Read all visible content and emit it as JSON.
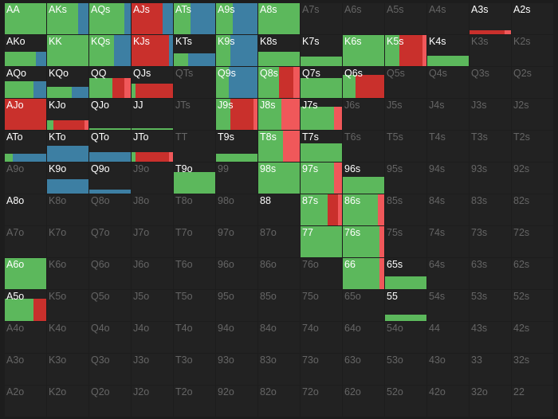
{
  "colors": {
    "call": "#5cb85c",
    "raise": "#c9302c",
    "raise_light": "#f0585a",
    "allin": "#3d7fa3"
  },
  "legend_order": [
    "call",
    "raise",
    "raise_light",
    "allin"
  ],
  "rows": [
    [
      {
        "label": "AA",
        "freq": {
          "call": 1.0
        }
      },
      {
        "label": "AKs",
        "freq": {
          "call": 0.75,
          "allin": 0.25
        }
      },
      {
        "label": "AQs",
        "freq": {
          "call": 0.85,
          "allin": 0.15
        }
      },
      {
        "label": "AJs",
        "freq": {
          "raise": 0.75,
          "allin": 0.25
        }
      },
      {
        "label": "ATs",
        "freq": {
          "call": 0.4,
          "allin": 0.6
        }
      },
      {
        "label": "A9s",
        "freq": {
          "call": 0.4,
          "allin": 0.6
        }
      },
      {
        "label": "A8s",
        "freq": {
          "call": 1.0
        }
      },
      {
        "label": "A7s",
        "freq": {}
      },
      {
        "label": "A6s",
        "freq": {}
      },
      {
        "label": "A5s",
        "freq": {}
      },
      {
        "label": "A4s",
        "freq": {}
      },
      {
        "label": "A3s",
        "freq": {
          "raise": 0.85,
          "raise_light": 0.15
        },
        "height": 0.12
      },
      {
        "label": "A2s",
        "freq": {},
        "active": true
      }
    ],
    [
      {
        "label": "AKo",
        "freq": {
          "call": 0.75,
          "allin": 0.25
        },
        "height": 0.45
      },
      {
        "label": "KK",
        "freq": {
          "call": 1.0
        }
      },
      {
        "label": "KQs",
        "freq": {
          "call": 0.6,
          "allin": 0.4
        }
      },
      {
        "label": "KJs",
        "freq": {
          "raise": 0.9,
          "allin": 0.1
        }
      },
      {
        "label": "KTs",
        "freq": {
          "call": 0.35,
          "allin": 0.65
        },
        "height": 0.42
      },
      {
        "label": "K9s",
        "freq": {
          "call": 0.35,
          "allin": 0.65
        }
      },
      {
        "label": "K8s",
        "freq": {
          "call": 1.0
        },
        "height": 0.45
      },
      {
        "label": "K7s",
        "freq": {
          "call": 1.0
        },
        "height": 0.3
      },
      {
        "label": "K6s",
        "freq": {
          "call": 1.0
        }
      },
      {
        "label": "K5s",
        "freq": {
          "raise": 0.55,
          "raise_light": 0.1,
          "call": 0.35
        }
      },
      {
        "label": "K4s",
        "freq": {
          "call": 1.0
        },
        "height": 0.33
      },
      {
        "label": "K3s",
        "freq": {}
      },
      {
        "label": "K2s",
        "freq": {}
      }
    ],
    [
      {
        "label": "AQo",
        "freq": {
          "call": 0.7,
          "allin": 0.3
        },
        "height": 0.55
      },
      {
        "label": "KQo",
        "freq": {
          "call": 0.6,
          "allin": 0.4
        },
        "height": 0.35
      },
      {
        "label": "QQ",
        "freq": {
          "call": 0.55,
          "raise": 0.3,
          "raise_light": 0.15
        },
        "height": 0.65
      },
      {
        "label": "QJs",
        "freq": {
          "raise": 0.9,
          "call": 0.1
        },
        "height": 0.45
      },
      {
        "label": "QTs",
        "freq": {}
      },
      {
        "label": "Q9s",
        "freq": {
          "call": 0.3,
          "allin": 0.7
        }
      },
      {
        "label": "Q8s",
        "freq": {
          "raise": 0.35,
          "raise_light": 0.15,
          "call": 0.5
        }
      },
      {
        "label": "Q7s",
        "freq": {
          "call": 1.0
        },
        "height": 0.65
      },
      {
        "label": "Q6s",
        "freq": {
          "raise": 0.7,
          "call": 0.3
        },
        "height": 0.75
      },
      {
        "label": "Q5s",
        "freq": {}
      },
      {
        "label": "Q4s",
        "freq": {}
      },
      {
        "label": "Q3s",
        "freq": {}
      },
      {
        "label": "Q2s",
        "freq": {}
      }
    ],
    [
      {
        "label": "AJo",
        "freq": {
          "raise": 1.0
        }
      },
      {
        "label": "KJo",
        "freq": {
          "raise": 0.75,
          "raise_light": 0.1,
          "call": 0.15
        },
        "height": 0.3
      },
      {
        "label": "QJo",
        "freq": {
          "call": 1.0
        },
        "height": 0.05
      },
      {
        "label": "JJ",
        "freq": {
          "call": 1.0
        },
        "height": 0.05
      },
      {
        "label": "JTs",
        "freq": {}
      },
      {
        "label": "J9s",
        "freq": {
          "raise": 0.55,
          "raise_light": 0.1,
          "call": 0.35
        }
      },
      {
        "label": "J8s",
        "freq": {
          "raise_light": 0.45,
          "call": 0.55
        }
      },
      {
        "label": "J7s",
        "freq": {
          "raise_light": 0.2,
          "call": 0.8
        },
        "height": 0.75
      },
      {
        "label": "J6s",
        "freq": {}
      },
      {
        "label": "J5s",
        "freq": {}
      },
      {
        "label": "J4s",
        "freq": {}
      },
      {
        "label": "J3s",
        "freq": {}
      },
      {
        "label": "J2s",
        "freq": {}
      }
    ],
    [
      {
        "label": "ATo",
        "freq": {
          "call": 0.2,
          "allin": 0.8
        },
        "height": 0.25
      },
      {
        "label": "KTo",
        "freq": {
          "allin": 1.0
        },
        "height": 0.5
      },
      {
        "label": "QTo",
        "freq": {
          "allin": 1.0
        },
        "height": 0.3
      },
      {
        "label": "JTo",
        "freq": {
          "raise": 0.8,
          "raise_light": 0.1,
          "call": 0.1
        },
        "height": 0.3
      },
      {
        "label": "TT",
        "freq": {}
      },
      {
        "label": "T9s",
        "freq": {
          "call": 1.0
        },
        "height": 0.25
      },
      {
        "label": "T8s",
        "freq": {
          "raise_light": 0.4,
          "call": 0.6
        }
      },
      {
        "label": "T7s",
        "freq": {
          "call": 1.0
        },
        "height": 0.6
      },
      {
        "label": "T6s",
        "freq": {}
      },
      {
        "label": "T5s",
        "freq": {}
      },
      {
        "label": "T4s",
        "freq": {}
      },
      {
        "label": "T3s",
        "freq": {}
      },
      {
        "label": "T2s",
        "freq": {}
      }
    ],
    [
      {
        "label": "A9o",
        "freq": {}
      },
      {
        "label": "K9o",
        "freq": {
          "allin": 1.0
        },
        "height": 0.45
      },
      {
        "label": "Q9o",
        "freq": {
          "allin": 1.0
        },
        "height": 0.12
      },
      {
        "label": "J9o",
        "freq": {}
      },
      {
        "label": "T9o",
        "freq": {
          "call": 1.0
        },
        "height": 0.7
      },
      {
        "label": "99",
        "freq": {}
      },
      {
        "label": "98s",
        "freq": {
          "call": 1.0
        }
      },
      {
        "label": "97s",
        "freq": {
          "raise_light": 0.2,
          "call": 0.8
        }
      },
      {
        "label": "96s",
        "freq": {
          "call": 1.0
        },
        "height": 0.55
      },
      {
        "label": "95s",
        "freq": {}
      },
      {
        "label": "94s",
        "freq": {}
      },
      {
        "label": "93s",
        "freq": {}
      },
      {
        "label": "92s",
        "freq": {}
      }
    ],
    [
      {
        "label": "A8o",
        "freq": {},
        "active": true
      },
      {
        "label": "K8o",
        "freq": {}
      },
      {
        "label": "Q8o",
        "freq": {}
      },
      {
        "label": "J8o",
        "freq": {}
      },
      {
        "label": "T8o",
        "freq": {}
      },
      {
        "label": "98o",
        "freq": {}
      },
      {
        "label": "88",
        "freq": {},
        "active": true
      },
      {
        "label": "87s",
        "freq": {
          "raise": 0.25,
          "raise_light": 0.1,
          "call": 0.65
        }
      },
      {
        "label": "86s",
        "freq": {
          "raise_light": 0.15,
          "call": 0.85
        }
      },
      {
        "label": "85s",
        "freq": {}
      },
      {
        "label": "84s",
        "freq": {}
      },
      {
        "label": "83s",
        "freq": {}
      },
      {
        "label": "82s",
        "freq": {}
      }
    ],
    [
      {
        "label": "A7o",
        "freq": {}
      },
      {
        "label": "K7o",
        "freq": {}
      },
      {
        "label": "Q7o",
        "freq": {}
      },
      {
        "label": "J7o",
        "freq": {}
      },
      {
        "label": "T7o",
        "freq": {}
      },
      {
        "label": "97o",
        "freq": {}
      },
      {
        "label": "87o",
        "freq": {}
      },
      {
        "label": "77",
        "freq": {
          "call": 1.0
        }
      },
      {
        "label": "76s",
        "freq": {
          "raise_light": 0.12,
          "call": 0.88
        }
      },
      {
        "label": "75s",
        "freq": {}
      },
      {
        "label": "74s",
        "freq": {}
      },
      {
        "label": "73s",
        "freq": {}
      },
      {
        "label": "72s",
        "freq": {}
      }
    ],
    [
      {
        "label": "A6o",
        "freq": {
          "call": 1.0
        }
      },
      {
        "label": "K6o",
        "freq": {}
      },
      {
        "label": "Q6o",
        "freq": {}
      },
      {
        "label": "J6o",
        "freq": {}
      },
      {
        "label": "T6o",
        "freq": {}
      },
      {
        "label": "96o",
        "freq": {}
      },
      {
        "label": "86o",
        "freq": {}
      },
      {
        "label": "76o",
        "freq": {}
      },
      {
        "label": "66",
        "freq": {
          "raise_light": 0.12,
          "call": 0.88
        }
      },
      {
        "label": "65s",
        "freq": {
          "call": 1.0
        },
        "height": 0.42
      },
      {
        "label": "64s",
        "freq": {}
      },
      {
        "label": "63s",
        "freq": {}
      },
      {
        "label": "62s",
        "freq": {}
      }
    ],
    [
      {
        "label": "A5o",
        "freq": {
          "raise": 0.3,
          "call": 0.7
        },
        "height": 0.72
      },
      {
        "label": "K5o",
        "freq": {}
      },
      {
        "label": "Q5o",
        "freq": {}
      },
      {
        "label": "J5o",
        "freq": {}
      },
      {
        "label": "T5o",
        "freq": {}
      },
      {
        "label": "95o",
        "freq": {}
      },
      {
        "label": "85o",
        "freq": {}
      },
      {
        "label": "75o",
        "freq": {}
      },
      {
        "label": "65o",
        "freq": {}
      },
      {
        "label": "55",
        "freq": {
          "call": 1.0
        },
        "height": 0.2
      },
      {
        "label": "54s",
        "freq": {}
      },
      {
        "label": "53s",
        "freq": {}
      },
      {
        "label": "52s",
        "freq": {}
      }
    ],
    [
      {
        "label": "A4o",
        "freq": {}
      },
      {
        "label": "K4o",
        "freq": {}
      },
      {
        "label": "Q4o",
        "freq": {}
      },
      {
        "label": "J4o",
        "freq": {}
      },
      {
        "label": "T4o",
        "freq": {}
      },
      {
        "label": "94o",
        "freq": {}
      },
      {
        "label": "84o",
        "freq": {}
      },
      {
        "label": "74o",
        "freq": {}
      },
      {
        "label": "64o",
        "freq": {}
      },
      {
        "label": "54o",
        "freq": {}
      },
      {
        "label": "44",
        "freq": {}
      },
      {
        "label": "43s",
        "freq": {}
      },
      {
        "label": "42s",
        "freq": {}
      }
    ],
    [
      {
        "label": "A3o",
        "freq": {}
      },
      {
        "label": "K3o",
        "freq": {}
      },
      {
        "label": "Q3o",
        "freq": {}
      },
      {
        "label": "J3o",
        "freq": {}
      },
      {
        "label": "T3o",
        "freq": {}
      },
      {
        "label": "93o",
        "freq": {}
      },
      {
        "label": "83o",
        "freq": {}
      },
      {
        "label": "73o",
        "freq": {}
      },
      {
        "label": "63o",
        "freq": {}
      },
      {
        "label": "53o",
        "freq": {}
      },
      {
        "label": "43o",
        "freq": {}
      },
      {
        "label": "33",
        "freq": {}
      },
      {
        "label": "32s",
        "freq": {}
      }
    ],
    [
      {
        "label": "A2o",
        "freq": {}
      },
      {
        "label": "K2o",
        "freq": {}
      },
      {
        "label": "Q2o",
        "freq": {}
      },
      {
        "label": "J2o",
        "freq": {}
      },
      {
        "label": "T2o",
        "freq": {}
      },
      {
        "label": "92o",
        "freq": {}
      },
      {
        "label": "82o",
        "freq": {}
      },
      {
        "label": "72o",
        "freq": {}
      },
      {
        "label": "62o",
        "freq": {}
      },
      {
        "label": "52o",
        "freq": {}
      },
      {
        "label": "42o",
        "freq": {}
      },
      {
        "label": "32o",
        "freq": {}
      },
      {
        "label": "22",
        "freq": {}
      }
    ]
  ]
}
